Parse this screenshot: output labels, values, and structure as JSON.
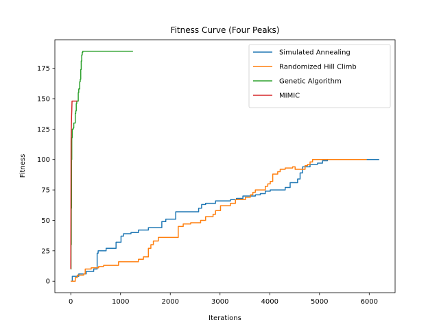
{
  "chart_data": {
    "type": "line",
    "title": "Fitness Curve (Four Peaks)",
    "xlabel": "Iterations",
    "ylabel": "Fitness",
    "xlim": [
      -320,
      6520
    ],
    "ylim": [
      -9.45,
      198.45
    ],
    "xticks": [
      0,
      1000,
      2000,
      3000,
      4000,
      5000,
      6000
    ],
    "yticks": [
      0,
      25,
      50,
      75,
      100,
      125,
      150,
      175
    ],
    "grid": false,
    "legend_position": "top-right",
    "colors": [
      "#1f77b4",
      "#ff7f0e",
      "#2ca02c",
      "#d62728"
    ],
    "series": [
      {
        "name": "Simulated Annealing",
        "step": true,
        "points": [
          [
            0,
            0
          ],
          [
            30,
            4
          ],
          [
            150,
            4
          ],
          [
            160,
            6
          ],
          [
            300,
            6
          ],
          [
            310,
            8
          ],
          [
            450,
            8
          ],
          [
            460,
            10
          ],
          [
            520,
            10
          ],
          [
            530,
            23
          ],
          [
            540,
            23
          ],
          [
            550,
            25
          ],
          [
            700,
            25
          ],
          [
            710,
            27
          ],
          [
            900,
            27
          ],
          [
            910,
            32
          ],
          [
            1000,
            32
          ],
          [
            1010,
            37
          ],
          [
            1050,
            37
          ],
          [
            1060,
            39
          ],
          [
            1200,
            39
          ],
          [
            1210,
            40
          ],
          [
            1350,
            40
          ],
          [
            1360,
            42
          ],
          [
            1550,
            42
          ],
          [
            1560,
            44
          ],
          [
            1820,
            44
          ],
          [
            1830,
            49
          ],
          [
            1900,
            49
          ],
          [
            1910,
            51
          ],
          [
            2100,
            51
          ],
          [
            2110,
            57
          ],
          [
            2560,
            57
          ],
          [
            2570,
            60
          ],
          [
            2620,
            60
          ],
          [
            2630,
            63
          ],
          [
            2700,
            63
          ],
          [
            2710,
            64
          ],
          [
            2900,
            64
          ],
          [
            2910,
            66
          ],
          [
            3200,
            66
          ],
          [
            3210,
            67
          ],
          [
            3320,
            67
          ],
          [
            3330,
            68
          ],
          [
            3450,
            68
          ],
          [
            3460,
            70
          ],
          [
            3700,
            70
          ],
          [
            3710,
            71
          ],
          [
            3800,
            71
          ],
          [
            3810,
            72
          ],
          [
            3900,
            72
          ],
          [
            3910,
            74
          ],
          [
            4000,
            74
          ],
          [
            4010,
            75
          ],
          [
            4300,
            75
          ],
          [
            4310,
            77
          ],
          [
            4400,
            77
          ],
          [
            4410,
            81
          ],
          [
            4550,
            81
          ],
          [
            4560,
            84
          ],
          [
            4600,
            84
          ],
          [
            4610,
            89
          ],
          [
            4650,
            89
          ],
          [
            4660,
            94
          ],
          [
            4800,
            94
          ],
          [
            4810,
            96
          ],
          [
            4950,
            96
          ],
          [
            4960,
            97
          ],
          [
            5050,
            97
          ],
          [
            5060,
            99
          ],
          [
            5150,
            99
          ],
          [
            5160,
            100
          ],
          [
            6200,
            100
          ]
        ]
      },
      {
        "name": "Randomized Hill Climb",
        "step": true,
        "points": [
          [
            0,
            0
          ],
          [
            80,
            0
          ],
          [
            90,
            3
          ],
          [
            120,
            3
          ],
          [
            130,
            5
          ],
          [
            250,
            5
          ],
          [
            260,
            6
          ],
          [
            280,
            6
          ],
          [
            290,
            10
          ],
          [
            400,
            10
          ],
          [
            410,
            11
          ],
          [
            450,
            11
          ],
          [
            460,
            11
          ],
          [
            550,
            11
          ],
          [
            560,
            12
          ],
          [
            650,
            12
          ],
          [
            660,
            13
          ],
          [
            950,
            13
          ],
          [
            960,
            16
          ],
          [
            1350,
            16
          ],
          [
            1360,
            18
          ],
          [
            1450,
            18
          ],
          [
            1460,
            20
          ],
          [
            1550,
            20
          ],
          [
            1560,
            27
          ],
          [
            1600,
            27
          ],
          [
            1610,
            30
          ],
          [
            1650,
            30
          ],
          [
            1660,
            33
          ],
          [
            1750,
            33
          ],
          [
            1760,
            36
          ],
          [
            2150,
            36
          ],
          [
            2160,
            45
          ],
          [
            2250,
            45
          ],
          [
            2260,
            47
          ],
          [
            2400,
            47
          ],
          [
            2410,
            48
          ],
          [
            2600,
            48
          ],
          [
            2610,
            50
          ],
          [
            2700,
            50
          ],
          [
            2710,
            53
          ],
          [
            2850,
            53
          ],
          [
            2860,
            55
          ],
          [
            2900,
            55
          ],
          [
            2910,
            58
          ],
          [
            3000,
            58
          ],
          [
            3010,
            62
          ],
          [
            3200,
            62
          ],
          [
            3210,
            64
          ],
          [
            3300,
            64
          ],
          [
            3310,
            67
          ],
          [
            3500,
            67
          ],
          [
            3510,
            69
          ],
          [
            3600,
            69
          ],
          [
            3610,
            71
          ],
          [
            3650,
            71
          ],
          [
            3660,
            73
          ],
          [
            3700,
            73
          ],
          [
            3710,
            75
          ],
          [
            3900,
            75
          ],
          [
            3910,
            78
          ],
          [
            3950,
            78
          ],
          [
            3960,
            80
          ],
          [
            4000,
            80
          ],
          [
            4010,
            82
          ],
          [
            4050,
            82
          ],
          [
            4060,
            88
          ],
          [
            4150,
            88
          ],
          [
            4160,
            90
          ],
          [
            4200,
            90
          ],
          [
            4210,
            92
          ],
          [
            4300,
            92
          ],
          [
            4310,
            93
          ],
          [
            4450,
            93
          ],
          [
            4460,
            94
          ],
          [
            4500,
            94
          ],
          [
            4510,
            92
          ],
          [
            4700,
            92
          ],
          [
            4710,
            95
          ],
          [
            4750,
            95
          ],
          [
            4760,
            96
          ],
          [
            4800,
            96
          ],
          [
            4810,
            98
          ],
          [
            4850,
            98
          ],
          [
            4860,
            100
          ],
          [
            5950,
            100
          ]
        ]
      },
      {
        "name": "Genetic Algorithm",
        "step": true,
        "points": [
          [
            0,
            10
          ],
          [
            5,
            30
          ],
          [
            10,
            60
          ],
          [
            15,
            100
          ],
          [
            20,
            118
          ],
          [
            30,
            125
          ],
          [
            50,
            126
          ],
          [
            60,
            130
          ],
          [
            80,
            130
          ],
          [
            90,
            138
          ],
          [
            100,
            140
          ],
          [
            110,
            146
          ],
          [
            120,
            148
          ],
          [
            140,
            148
          ],
          [
            150,
            155
          ],
          [
            160,
            158
          ],
          [
            180,
            164
          ],
          [
            190,
            166
          ],
          [
            200,
            174
          ],
          [
            210,
            181
          ],
          [
            220,
            186
          ],
          [
            230,
            188
          ],
          [
            240,
            189
          ],
          [
            1250,
            189
          ]
        ]
      },
      {
        "name": "MIMIC",
        "step": false,
        "points": [
          [
            0,
            10
          ],
          [
            3,
            60
          ],
          [
            6,
            115
          ],
          [
            10,
            125
          ],
          [
            15,
            135
          ],
          [
            20,
            140
          ],
          [
            25,
            148
          ],
          [
            130,
            148
          ]
        ]
      }
    ]
  }
}
